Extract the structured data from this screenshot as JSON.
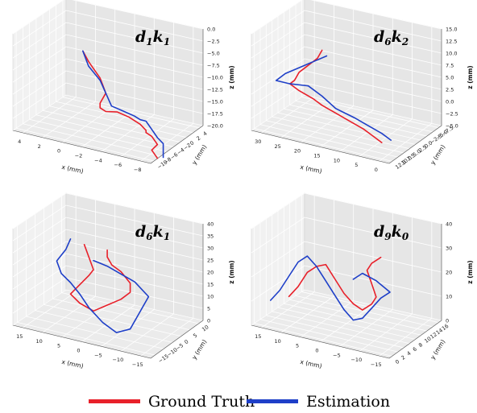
{
  "legend": {
    "ground_truth": "Ground Truth",
    "estimation": "Estimation"
  },
  "colors": {
    "ground_truth": "#e8202a",
    "estimation": "#1e3fc8",
    "pane": "#ebebeb",
    "grid": "#ffffff"
  },
  "chart_data": [
    {
      "type": "line",
      "title": "d1k1",
      "title_parts": {
        "a": "d",
        "a_sub": "1",
        "b": "k",
        "b_sub": "1"
      },
      "xlabel": "x (mm)",
      "ylabel": "y (mm)",
      "zlabel": "z (mm)",
      "x_ticks": [
        "4",
        "2",
        "0",
        "−2",
        "−4",
        "−6",
        "−8"
      ],
      "y_ticks": [
        "−10",
        "−8",
        "−6",
        "−4",
        "−2",
        "0",
        "2",
        "4"
      ],
      "z_ticks": [
        "0.0",
        "−2.5",
        "−5.0",
        "−7.5",
        "−10.0",
        "−12.5",
        "−15.0",
        "−17.5",
        "−20.0"
      ],
      "zlim": [
        -20.0,
        0.0
      ],
      "series": [
        {
          "name": "Ground Truth",
          "x": [
            -1,
            -1.5,
            -2.5,
            -3,
            -2.5,
            -2.5,
            -3,
            -4,
            -5,
            -6,
            -6.5,
            -6.5,
            -7,
            -7.5,
            -7,
            -7.5
          ],
          "y": [
            -2,
            -2,
            -2,
            -2,
            -2,
            -2,
            -2,
            -2,
            -2,
            -2,
            -2,
            -2,
            -2,
            -2,
            -2,
            -2
          ],
          "z": [
            -1.5,
            -3.5,
            -6.5,
            -9.5,
            -12,
            -13,
            -13.5,
            -13,
            -13.5,
            -14.5,
            -15.5,
            -16,
            -16.5,
            -18,
            -19.5,
            -21
          ]
        },
        {
          "name": "Estimation",
          "x": [
            -1,
            -1.5,
            -2.5,
            -3,
            -3.5,
            -4.5,
            -5.5,
            -6,
            -6.5,
            -7,
            -7.5,
            -8,
            -8.5,
            -9,
            -9.5,
            -10
          ],
          "y": [
            -2,
            -2,
            -2,
            -2,
            -2,
            -2,
            -2,
            -2,
            -2,
            -2,
            -2,
            -2,
            -2,
            -2,
            -2,
            -2
          ],
          "z": [
            -1.5,
            -4.5,
            -7,
            -9.5,
            -12,
            -12.5,
            -13,
            -13.5,
            -13.5,
            -15,
            -16.5,
            -17.5,
            -18,
            -19,
            -20,
            -20.5
          ]
        }
      ]
    },
    {
      "type": "line",
      "title": "d6k2",
      "title_parts": {
        "a": "d",
        "a_sub": "6",
        "b": "k",
        "b_sub": "2"
      },
      "xlabel": "x (mm)",
      "ylabel": "y (mm)",
      "zlabel": "z (mm)",
      "x_ticks": [
        "30",
        "25",
        "20",
        "15",
        "10",
        "5",
        "0"
      ],
      "y_ticks": [
        "12.5",
        "10.0",
        "7.5",
        "5.0",
        "2.5",
        "0.0",
        "−2.5",
        "−5.0",
        "−7.5"
      ],
      "z_ticks": [
        "15.0",
        "12.5",
        "10.0",
        "7.5",
        "5.0",
        "2.5",
        "0.0",
        "−2.5",
        "−5.0"
      ],
      "zlim": [
        -5.0,
        15.0
      ],
      "series": [
        {
          "name": "Ground Truth",
          "x": [
            17,
            18,
            20,
            22,
            23,
            24,
            22,
            19,
            17,
            14,
            11,
            8,
            6,
            4
          ],
          "y": [
            0,
            0,
            0,
            0,
            0,
            0,
            0,
            0,
            0,
            0,
            0,
            0,
            0,
            0
          ],
          "z": [
            14,
            12,
            10,
            8,
            6,
            5,
            4,
            3,
            2,
            1,
            0,
            -1,
            -2,
            -3
          ]
        },
        {
          "name": "Estimation",
          "x": [
            16,
            19,
            22,
            25,
            27,
            24,
            20,
            17,
            14,
            10,
            7,
            4,
            2
          ],
          "y": [
            0,
            0,
            0,
            0,
            0,
            0,
            0,
            0,
            0,
            0,
            0,
            0,
            0
          ],
          "z": [
            13,
            11,
            9,
            7,
            5,
            5,
            5.5,
            4,
            2,
            1,
            0,
            -1,
            -2
          ]
        }
      ]
    },
    {
      "type": "line",
      "title": "d6k1",
      "title_parts": {
        "a": "d",
        "a_sub": "6",
        "b": "k",
        "b_sub": "1"
      },
      "xlabel": "x (mm)",
      "ylabel": "y (mm)",
      "zlabel": "z (mm)",
      "x_ticks": [
        "15",
        "10",
        "5",
        "0",
        "−5",
        "−10",
        "−15"
      ],
      "y_ticks": [
        "−15",
        "−10",
        "−5",
        "0",
        "5",
        "10"
      ],
      "z_ticks": [
        "40",
        "35",
        "30",
        "25",
        "20",
        "15",
        "10",
        "5",
        "0"
      ],
      "zlim": [
        0,
        40
      ],
      "series": [
        {
          "name": "Ground Truth",
          "x": [
            2,
            1,
            0,
            1,
            3,
            5,
            3,
            0,
            -3,
            -6,
            -8,
            -8,
            -7,
            -6,
            -4,
            -3,
            -3
          ],
          "y": [
            0,
            0,
            0,
            0,
            0,
            0,
            0,
            0,
            0,
            0,
            0,
            0,
            0,
            0,
            0,
            0,
            0
          ],
          "z": [
            38,
            33,
            28,
            25,
            20,
            15,
            12,
            10,
            14,
            18,
            22,
            26,
            28,
            30,
            32,
            35,
            38
          ]
        },
        {
          "name": "Estimation",
          "x": [
            5,
            6,
            8,
            7,
            5,
            3,
            1,
            -2,
            -5,
            -8,
            -10,
            -12,
            -9,
            -6,
            -3,
            0
          ],
          "y": [
            0,
            0,
            0,
            0,
            0,
            0,
            0,
            0,
            0,
            0,
            0,
            0,
            0,
            0,
            0,
            0
          ],
          "z": [
            39,
            34,
            28,
            23,
            20,
            16,
            11,
            6,
            3,
            6,
            14,
            22,
            27,
            29,
            31,
            32
          ]
        }
      ]
    },
    {
      "type": "line",
      "title": "d9k0",
      "title_parts": {
        "a": "d",
        "a_sub": "9",
        "b": "k",
        "b_sub": "0"
      },
      "xlabel": "x (mm)",
      "ylabel": "y (mm)",
      "zlabel": "z (mm)",
      "x_ticks": [
        "15",
        "10",
        "5",
        "0",
        "−5",
        "−10",
        "−15"
      ],
      "y_ticks": [
        "0",
        "2",
        "4",
        "6",
        "8",
        "10",
        "12",
        "14",
        "16"
      ],
      "z_ticks": [
        "40",
        "30",
        "20",
        "10",
        "0"
      ],
      "zlim": [
        0,
        45
      ],
      "series": [
        {
          "name": "Ground Truth",
          "x": [
            10,
            8,
            6,
            4,
            2,
            0,
            -2,
            -4,
            -6,
            -8,
            -9,
            -8,
            -7,
            -8,
            -9,
            -10
          ],
          "y": [
            8,
            8,
            8,
            8,
            8,
            8,
            8,
            8,
            8,
            8,
            8,
            8,
            8,
            8,
            8,
            8
          ],
          "z": [
            12,
            18,
            26,
            30,
            32,
            26,
            20,
            16,
            14,
            18,
            22,
            28,
            34,
            38,
            40,
            42
          ]
        },
        {
          "name": "Estimation",
          "x": [
            14,
            12,
            10,
            8,
            6,
            4,
            2,
            0,
            -2,
            -4,
            -6,
            -8,
            -10,
            -12,
            -9,
            -6,
            -4
          ],
          "y": [
            8,
            8,
            8,
            8,
            8,
            8,
            8,
            8,
            8,
            8,
            8,
            8,
            8,
            8,
            8,
            8,
            8
          ],
          "z": [
            8,
            14,
            22,
            30,
            34,
            30,
            24,
            18,
            12,
            8,
            10,
            16,
            22,
            26,
            30,
            32,
            28
          ]
        }
      ]
    }
  ]
}
